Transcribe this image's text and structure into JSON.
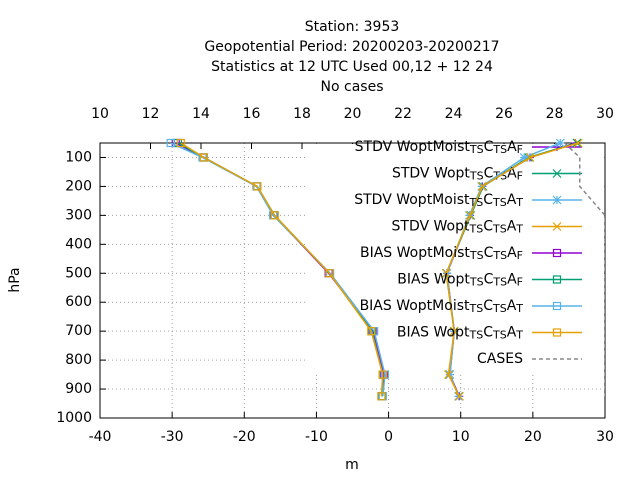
{
  "chart_data": {
    "type": "line",
    "title": [
      "Station:     3953",
      "Geopotential  Period: 20200203-20200217",
      "Statistics at 12 UTC  Used  00,12 + 12 24",
      "No cases"
    ],
    "xlabel": "m",
    "ylabel": "hPa",
    "y": [
      50,
      100,
      200,
      300,
      500,
      700,
      850,
      925
    ],
    "xlim": [
      -40,
      30
    ],
    "xticks": [
      -40,
      -30,
      -20,
      -10,
      0,
      10,
      20,
      30
    ],
    "x2lim": [
      10,
      30
    ],
    "x2ticks": [
      10,
      12,
      14,
      16,
      18,
      20,
      22,
      24,
      26,
      28,
      30
    ],
    "ylim": [
      1000,
      50
    ],
    "yticks": [
      100,
      200,
      300,
      400,
      500,
      600,
      700,
      800,
      900,
      1000
    ],
    "grid": true,
    "legend": "top-right",
    "series": [
      {
        "name": "STDV WoptMoist_{TS}C_{TS}A_{F}",
        "color": "#9400d3",
        "marker": "plus",
        "values": [
          25.9,
          19.6,
          13.0,
          11.3,
          8.1,
          9.1,
          8.5,
          9.8
        ]
      },
      {
        "name": "STDV Wopt_{TS}C_{TS}A_{F}",
        "color": "#009e73",
        "marker": "cross",
        "values": [
          26.1,
          19.4,
          13.1,
          11.4,
          8.0,
          9.1,
          8.4,
          9.8
        ]
      },
      {
        "name": "STDV WoptMoist_{TS}C_{TS}A_{T}",
        "color": "#56b4e9",
        "marker": "star",
        "values": [
          23.8,
          18.8,
          12.9,
          11.2,
          8.1,
          9.1,
          8.5,
          9.7
        ]
      },
      {
        "name": "STDV Wopt_{TS}C_{TS}A_{T}",
        "color": "#e69f00",
        "marker": "cross",
        "values": [
          26.3,
          19.6,
          13.0,
          11.3,
          8.0,
          9.1,
          8.3,
          9.8
        ]
      },
      {
        "name": "BIAS WoptMoist_{TS}C_{TS}A_{F}",
        "color": "#9400d3",
        "marker": "square",
        "values": [
          -29.5,
          -25.6,
          -18.3,
          -15.9,
          -8.3,
          -2.1,
          -0.6,
          -0.9
        ]
      },
      {
        "name": "BIAS Wopt_{TS}C_{TS}A_{F}",
        "color": "#009e73",
        "marker": "square",
        "values": [
          -29.2,
          -25.6,
          -18.2,
          -15.8,
          -8.2,
          -2.3,
          -0.8,
          -0.9
        ]
      },
      {
        "name": "BIAS WoptMoist_{TS}C_{TS}A_{T}",
        "color": "#56b4e9",
        "marker": "square",
        "values": [
          -30.2,
          -25.8,
          -18.3,
          -16.0,
          -8.1,
          -2.0,
          -0.5,
          -0.8
        ]
      },
      {
        "name": "BIAS Wopt_{TS}C_{TS}A_{T}",
        "color": "#e69f00",
        "marker": "square",
        "values": [
          -28.8,
          -25.6,
          -18.2,
          -15.8,
          -8.2,
          -2.4,
          -0.8,
          -1.0
        ]
      },
      {
        "name": "CASES",
        "color": "#888888",
        "marker": "none",
        "dashed": true,
        "axis": "x2",
        "values": [
          28.4,
          29.0,
          29.0,
          30.0,
          30.0,
          30.0,
          30.0,
          30.0
        ]
      }
    ]
  }
}
